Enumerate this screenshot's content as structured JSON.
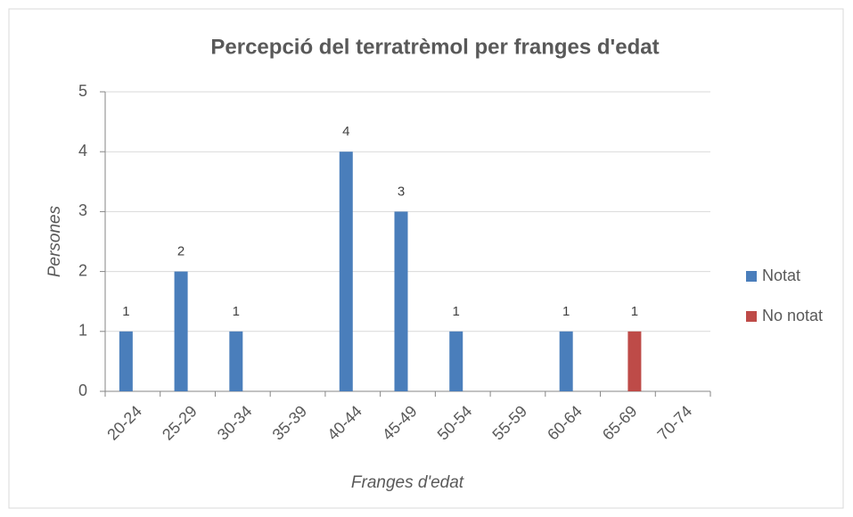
{
  "chart_data": {
    "type": "bar",
    "title": "Percepció del terratrèmol per franges d'edat",
    "x_label": "Franges d'edat",
    "y_label": "Persones",
    "categories": [
      "20-24",
      "25-29",
      "30-34",
      "35-39",
      "40-44",
      "45-49",
      "50-54",
      "55-59",
      "60-64",
      "65-69",
      "70-74"
    ],
    "series": [
      {
        "name": "Notat",
        "color": "#4a7ebb",
        "values": [
          1,
          2,
          1,
          null,
          4,
          3,
          1,
          null,
          1,
          null,
          null
        ]
      },
      {
        "name": "No notat",
        "color": "#be4b48",
        "values": [
          null,
          null,
          null,
          null,
          null,
          null,
          null,
          null,
          null,
          1,
          null
        ]
      }
    ],
    "ylim": [
      0,
      5
    ],
    "yticks": [
      0,
      1,
      2,
      3,
      4,
      5
    ],
    "grid": true,
    "legend": "right"
  }
}
